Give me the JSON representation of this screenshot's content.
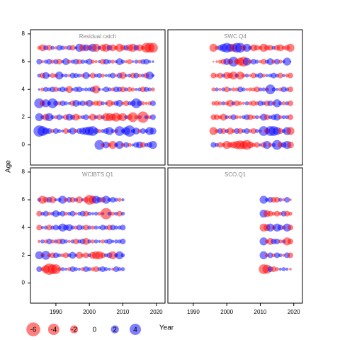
{
  "chart_data": {
    "type": "bubble",
    "xlabel": "Year",
    "ylabel": "Age",
    "xlim": [
      1982.4,
      2022.6
    ],
    "xticks": [
      1990,
      2000,
      2010,
      2020
    ],
    "ylim": [
      -1.45,
      8.3
    ],
    "yticks": [
      0,
      2,
      4,
      6,
      8
    ],
    "pos_color": "#0000ff",
    "neg_color": "#ff0000",
    "legend": {
      "values": [
        -6,
        -4,
        -2,
        0,
        2,
        4
      ]
    },
    "panels": [
      {
        "title": "Residual catch",
        "x": [
          1985,
          1986,
          1987,
          1988,
          1989,
          1990,
          1991,
          1992,
          1993,
          1994,
          1995,
          1996,
          1997,
          1998,
          1999,
          2000,
          2001,
          2002,
          2003,
          2004,
          2005,
          2006,
          2007,
          2008,
          2009,
          2010,
          2011,
          2012,
          2013,
          2014,
          2015,
          2016,
          2017,
          2018,
          2019
        ],
        "ages": [
          0,
          1,
          2,
          3,
          4,
          5,
          6,
          7
        ],
        "values": [
          [
            null,
            null,
            null,
            null,
            null,
            null,
            null,
            null,
            null,
            null,
            null,
            null,
            null,
            null,
            null,
            null,
            null,
            null,
            3,
            -0.5,
            1.5,
            -0.5,
            -2,
            0.5,
            2,
            -0.5,
            1,
            -0.5,
            0.3,
            1,
            1.5,
            -1,
            0.5,
            1,
            2
          ],
          [
            4,
            3,
            1.5,
            1,
            -0.5,
            1,
            0.5,
            0.3,
            -1,
            0.5,
            1.5,
            -0.5,
            1,
            1.5,
            2,
            2.5,
            3,
            1,
            -0.5,
            0.5,
            1,
            2,
            0.5,
            -0.5,
            3,
            0.5,
            2,
            4,
            0.5,
            1.5,
            -0.5,
            1,
            0.5,
            2,
            1.5
          ],
          [
            2,
            0.5,
            -1.5,
            2,
            0.5,
            -0.5,
            1,
            0.3,
            -1,
            1.5,
            0.8,
            -1.5,
            -0.5,
            0.5,
            1,
            -0.3,
            -1.5,
            0.5,
            -1,
            0.5,
            -2,
            -2,
            -1.5,
            -2.5,
            -1,
            -2,
            0.5,
            -1,
            -3,
            -0.5,
            0.5,
            -4,
            0.5,
            -0.5,
            1
          ],
          [
            3,
            -1,
            2,
            0.5,
            3,
            0.8,
            -0.5,
            1,
            0.5,
            0.3,
            -1,
            1.5,
            0.5,
            1,
            -0.5,
            1.5,
            -0.5,
            -0.8,
            -1,
            0.5,
            0.3,
            -1.5,
            -0.5,
            0.8,
            1.5,
            -0.3,
            -1,
            0.5,
            1,
            3,
            1,
            -0.5,
            -0.3,
            -0.5,
            1
          ],
          [
            0.2,
            -0.5,
            0.8,
            0.5,
            1,
            -0.8,
            0.5,
            1,
            0.5,
            -1.5,
            0.3,
            0.8,
            1,
            0.3,
            0.5,
            0.5,
            1,
            -2,
            0.3,
            0.2,
            1,
            0.5,
            -0.5,
            1,
            0.8,
            -1,
            0.5,
            -0.8,
            -0.5,
            0.3,
            0.5,
            -1,
            0.8,
            0.5,
            -0.5
          ],
          [
            0.5,
            -1,
            1.5,
            0.3,
            -0.8,
            -0.5,
            2,
            0.4,
            0.5,
            -0.3,
            1,
            0.8,
            0.5,
            -0.5,
            1.5,
            0.3,
            -1,
            0.5,
            0.8,
            -0.5,
            0.3,
            0.5,
            1,
            -0.3,
            1,
            -1.5,
            0.3,
            0.5,
            -1,
            1,
            -0.5,
            0.5,
            -1,
            2,
            0.3
          ],
          [
            1,
            -0.3,
            0.5,
            1,
            -0.5,
            0.8,
            -1,
            0.3,
            1.5,
            -0.5,
            0.5,
            1,
            -0.8,
            0.6,
            0.4,
            1.2,
            -0.5,
            -0.3,
            0.3,
            -1,
            1,
            0.5,
            -0.5,
            0.3,
            1.5,
            0.5,
            -0.3,
            -0.8,
            0.2,
            0.5,
            -0.5,
            0.8,
            1,
            0.3,
            0.2
          ],
          [
            -0.5,
            -1.5,
            0.8,
            -1,
            0.5,
            -0.3,
            1,
            0.6,
            -0.4,
            0.8,
            -1,
            0.3,
            2,
            -1.5,
            1.5,
            -1,
            2,
            -2,
            0.5,
            -1.5,
            -2,
            1,
            -1.5,
            -0.5,
            -2,
            -1,
            1,
            -1.5,
            -2,
            1,
            -1.5,
            -0.5,
            -3,
            -3,
            -3
          ]
        ]
      },
      {
        "title": "SWC.Q4",
        "x": [
          1996,
          1997,
          1998,
          1999,
          2000,
          2001,
          2002,
          2003,
          2004,
          2005,
          2006,
          2007,
          2008,
          2009,
          2010,
          2011,
          2012,
          2013,
          2014,
          2015,
          2016,
          2017,
          2018,
          2019
        ],
        "ages": [
          0,
          1,
          2,
          3,
          4,
          5,
          6,
          7
        ],
        "values": [
          [
            1,
            0.5,
            -1,
            -0.5,
            -2,
            -1,
            -1.5,
            -2,
            -2.5,
            -2,
            -3,
            -1.5,
            -0.5,
            -1,
            0.3,
            -1,
            2,
            -0.5,
            0.5,
            3,
            -1,
            1,
            2,
            -1.5
          ],
          [
            -2,
            -0.5,
            1,
            -1,
            0.5,
            -1.5,
            -0.5,
            1,
            -1,
            0.5,
            1,
            -0.5,
            -1,
            0.5,
            -0.3,
            3,
            -1,
            3,
            3,
            2,
            -1,
            0.5,
            2,
            -2
          ],
          [
            -1,
            -1,
            -0.5,
            -1.5,
            0.5,
            -0.5,
            1,
            -0.5,
            -0.3,
            0.5,
            1,
            -1,
            -0.5,
            0.5,
            -0.3,
            1.5,
            -1,
            0.5,
            1,
            1.5,
            -0.5,
            0.5,
            0.5,
            -1
          ],
          [
            -0.5,
            -0.8,
            -0.5,
            0.5,
            -0.5,
            -1.5,
            0.5,
            -1,
            -0.5,
            -0.3,
            0.5,
            -0.5,
            -1,
            -0.5,
            1,
            0.5,
            -1,
            1,
            -0.5,
            2,
            0.5,
            -0.5,
            0.5,
            -1
          ],
          [
            -0.5,
            0.5,
            -0.3,
            0.5,
            -1,
            0.3,
            -0.5,
            -0.5,
            1,
            0.5,
            -0.3,
            -0.5,
            -0.5,
            -1,
            0.5,
            0.5,
            -0.5,
            3,
            0.5,
            0.3,
            -0.5,
            1,
            0.5,
            -1
          ],
          [
            -1,
            -0.5,
            -1,
            0.5,
            -1.5,
            -1,
            -2,
            0.5,
            -2,
            -0.5,
            0.5,
            -0.3,
            -1,
            0.5,
            1,
            -0.5,
            0.3,
            0.5,
            1,
            0.5,
            -1,
            0.3,
            -0.5,
            -1
          ],
          [
            -0.1,
            -0.2,
            -0.5,
            -1,
            1.5,
            -1,
            3,
            -1,
            -2,
            -3,
            2,
            -0.5,
            1,
            0.5,
            -0.3,
            -1,
            0.5,
            1.5,
            -0.5,
            1,
            -0.5,
            0.3,
            2,
            0.1
          ],
          [
            -2,
            -0.5,
            1,
            2,
            3,
            2,
            -2,
            3,
            3,
            -1,
            2,
            0.5,
            -1.5,
            -1,
            -0.5,
            -2,
            -1,
            -1,
            0.5,
            -1,
            -1.5,
            -0.5,
            -1,
            -2
          ]
        ]
      },
      {
        "title": "WCIBTS.Q1",
        "x": [
          1985,
          1986,
          1987,
          1988,
          1989,
          1990,
          1991,
          1992,
          1993,
          1994,
          1995,
          1996,
          1997,
          1998,
          1999,
          2000,
          2001,
          2002,
          2003,
          2004,
          2005,
          2006,
          2007,
          2008,
          2009,
          2010
        ],
        "ages": [
          1,
          2,
          3,
          4,
          5,
          6
        ],
        "values": [
          [
            1,
            -0.5,
            -2,
            -4,
            -3,
            -3,
            -0.5,
            0.5,
            0.3,
            -0.5,
            1,
            0.5,
            0.3,
            -0.5,
            1,
            0.5,
            -0.5,
            -1,
            0.5,
            1,
            0.5,
            0.3,
            -0.3,
            1,
            0.5,
            0.5
          ],
          [
            2,
            -0.5,
            2.5,
            -0.5,
            -1,
            1,
            0.5,
            -0.5,
            -1,
            0.5,
            1.5,
            0.3,
            -1.5,
            -0.5,
            -1,
            0.5,
            -1.5,
            -2,
            -2,
            -1,
            0.5,
            1,
            -2,
            0.5,
            2,
            0.5
          ],
          [
            -0.3,
            0.5,
            -0.5,
            1,
            -0.5,
            0.5,
            -1,
            1,
            0.5,
            -0.3,
            0.5,
            -1,
            0.5,
            1,
            -1.5,
            0.5,
            -0.5,
            0.5,
            0.3,
            -0.5,
            0.5,
            1,
            0.3,
            0.5,
            0.5,
            1
          ],
          [
            -1,
            0.3,
            0.5,
            -1,
            0.5,
            1,
            0.5,
            2,
            1,
            1.5,
            0.5,
            -0.5,
            1,
            0.5,
            -1,
            0.5,
            -0.5,
            0.5,
            0.3,
            1,
            0.5,
            -1,
            1,
            0.5,
            0.5,
            1
          ],
          [
            -1,
            0.5,
            1,
            -0.5,
            0.5,
            1.5,
            0.5,
            1,
            -0.5,
            0.5,
            1,
            -0.3,
            0.5,
            1,
            -1,
            0.5,
            0.3,
            0.5,
            -0.5,
            0.3,
            -4,
            0.5,
            -0.5,
            0.5,
            -1,
            0.5
          ],
          [
            0.5,
            -2,
            -1,
            1,
            -1.5,
            0.3,
            0.5,
            2,
            -0.5,
            1,
            -1,
            0.5,
            -1.5,
            0.3,
            -1,
            -3,
            -2,
            2,
            1,
            -1,
            2,
            0.5,
            1,
            0.5,
            -0.5,
            0.3
          ]
        ]
      },
      {
        "title": "SCO.Q1",
        "x": [
          2011,
          2012,
          2013,
          2014,
          2015,
          2016,
          2017,
          2018,
          2019
        ],
        "ages": [
          1,
          2,
          3,
          4,
          5,
          6
        ],
        "values": [
          [
            -3,
            -2.5,
            1,
            -1,
            -0.5,
            0.3,
            0.5,
            0.3,
            -0.2
          ],
          [
            2,
            -0.5,
            1,
            -0.5,
            1,
            0.5,
            -0.3,
            1,
            -1
          ],
          [
            2,
            -0.5,
            -1.5,
            1,
            1,
            -0.5,
            0.5,
            -2,
            -1
          ],
          [
            -2,
            -1.5,
            2,
            -0.5,
            2,
            1,
            -0.5,
            2,
            -1
          ],
          [
            2,
            -1.5,
            -1,
            -0.5,
            -1,
            -0.5,
            1,
            -1,
            -0.5
          ],
          [
            2,
            0.5,
            1,
            -1,
            -1,
            0.5,
            -0.3,
            1,
            -0.2
          ]
        ]
      }
    ]
  }
}
